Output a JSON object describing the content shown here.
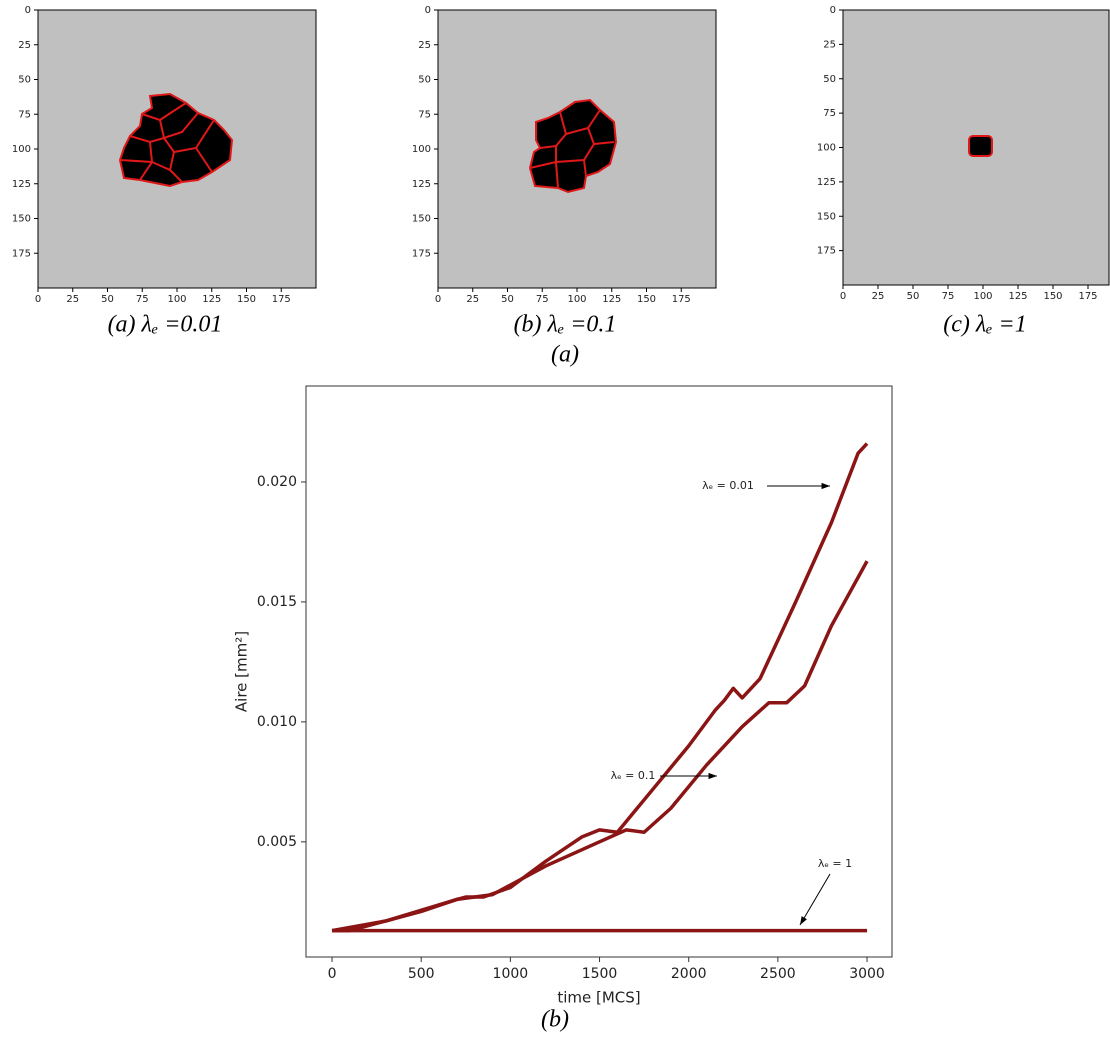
{
  "chart_data": [
    {
      "type": "image",
      "caption": "(a) λₑ =0.01",
      "xlim": [
        0,
        200
      ],
      "ylim": [
        0,
        200
      ],
      "xticks": [
        0,
        25,
        50,
        75,
        100,
        125,
        150,
        175
      ],
      "yticks": [
        0,
        25,
        50,
        75,
        100,
        125,
        150,
        175
      ]
    },
    {
      "type": "image",
      "caption": "(b) λₑ =0.1",
      "xlim": [
        0,
        200
      ],
      "ylim": [
        0,
        200
      ],
      "xticks": [
        0,
        25,
        50,
        75,
        100,
        125,
        150,
        175
      ],
      "yticks": [
        0,
        25,
        50,
        75,
        100,
        125,
        150,
        175
      ]
    },
    {
      "type": "image",
      "caption": "(c) λₑ =1",
      "xlim": [
        0,
        190
      ],
      "ylim": [
        0,
        200
      ],
      "xticks": [
        0,
        25,
        50,
        75,
        100,
        125,
        150,
        175
      ],
      "yticks": [
        0,
        25,
        50,
        75,
        100,
        125,
        150,
        175
      ]
    },
    {
      "type": "line",
      "caption": "(b)",
      "xlabel": "time [MCS]",
      "ylabel": "Aire [mm²]",
      "xlim": [
        -146,
        3140
      ],
      "ylim": [
        0.0002,
        0.024
      ],
      "xticks": [
        0,
        500,
        1000,
        1500,
        2000,
        2500,
        3000
      ],
      "yticks": [
        0.005,
        {
          "value": 0.01,
          "label": "0.010"
        },
        0.015,
        {
          "value": 0.02,
          "label": "0.020"
        }
      ],
      "series": [
        {
          "name": "λₑ = 0.01",
          "color": "#8b1414",
          "x": [
            0,
            100,
            300,
            500,
            700,
            750,
            850,
            1000,
            1200,
            1400,
            1500,
            1600,
            1800,
            2000,
            2150,
            2200,
            2250,
            2300,
            2400,
            2600,
            2800,
            2950,
            3000
          ],
          "values": [
            0.0013,
            0.0013,
            0.0017,
            0.0021,
            0.0026,
            0.0027,
            0.0027,
            0.0031,
            0.0042,
            0.0052,
            0.0055,
            0.0054,
            0.0072,
            0.009,
            0.0105,
            0.0109,
            0.0114,
            0.011,
            0.0118,
            0.015,
            0.0183,
            0.0212,
            0.0216
          ]
        },
        {
          "name": "λₑ = 0.1",
          "color": "#8b1414",
          "x": [
            0,
            300,
            700,
            900,
            1200,
            1500,
            1650,
            1750,
            1900,
            2100,
            2300,
            2450,
            2550,
            2650,
            2800,
            3000
          ],
          "values": [
            0.0013,
            0.0017,
            0.0026,
            0.0028,
            0.004,
            0.005,
            0.0055,
            0.0054,
            0.0064,
            0.0082,
            0.0098,
            0.0108,
            0.0108,
            0.0115,
            0.014,
            0.0167
          ]
        },
        {
          "name": "λₑ = 1",
          "color": "#8b1414",
          "x": [
            0,
            3000
          ],
          "values": [
            0.0013,
            0.0013
          ]
        }
      ]
    }
  ],
  "group_caption": "(a)"
}
